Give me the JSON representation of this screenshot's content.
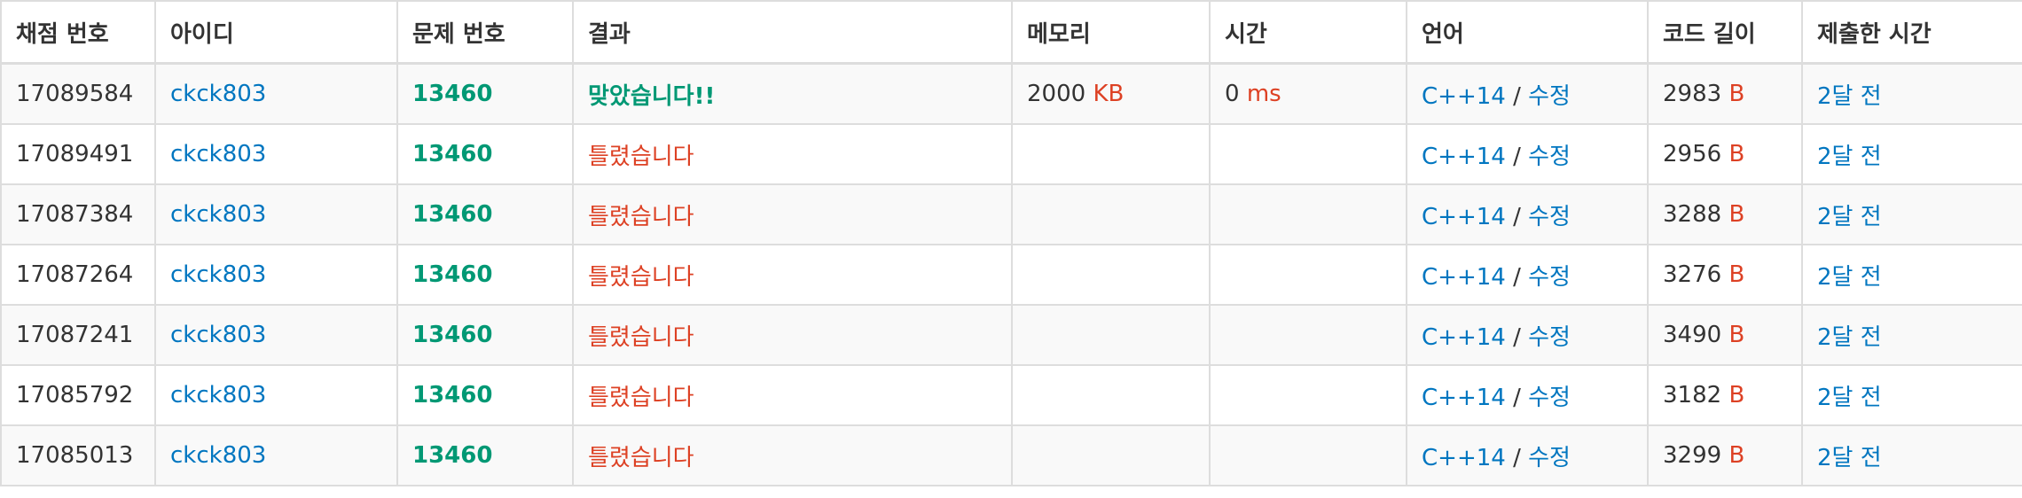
{
  "columns": [
    "채점 번호",
    "아이디",
    "문제 번호",
    "결과",
    "메모리",
    "시간",
    "언어",
    "코드 길이",
    "제출한 시간"
  ],
  "units": {
    "memory": "KB",
    "time": "ms",
    "code_length": "B"
  },
  "colors": {
    "accepted": "#009874",
    "wrong": "#dd4124",
    "link": "#0076c0",
    "unit": "#dd4124"
  },
  "rows": [
    {
      "id": "17089584",
      "user": "ckck803",
      "problem": "13460",
      "result": "맞았습니다!!",
      "result_kind": "accepted",
      "memory": "2000",
      "memory_unit": "KB",
      "time": "0",
      "time_unit": "ms",
      "language": "C++14",
      "sep": "/",
      "edit": "수정",
      "code_length": "2983",
      "code_unit": "B",
      "submitted": "2달 전"
    },
    {
      "id": "17089491",
      "user": "ckck803",
      "problem": "13460",
      "result": "틀렸습니다",
      "result_kind": "wrong",
      "memory": "",
      "memory_unit": "",
      "time": "",
      "time_unit": "",
      "language": "C++14",
      "sep": "/",
      "edit": "수정",
      "code_length": "2956",
      "code_unit": "B",
      "submitted": "2달 전"
    },
    {
      "id": "17087384",
      "user": "ckck803",
      "problem": "13460",
      "result": "틀렸습니다",
      "result_kind": "wrong",
      "memory": "",
      "memory_unit": "",
      "time": "",
      "time_unit": "",
      "language": "C++14",
      "sep": "/",
      "edit": "수정",
      "code_length": "3288",
      "code_unit": "B",
      "submitted": "2달 전"
    },
    {
      "id": "17087264",
      "user": "ckck803",
      "problem": "13460",
      "result": "틀렸습니다",
      "result_kind": "wrong",
      "memory": "",
      "memory_unit": "",
      "time": "",
      "time_unit": "",
      "language": "C++14",
      "sep": "/",
      "edit": "수정",
      "code_length": "3276",
      "code_unit": "B",
      "submitted": "2달 전"
    },
    {
      "id": "17087241",
      "user": "ckck803",
      "problem": "13460",
      "result": "틀렸습니다",
      "result_kind": "wrong",
      "memory": "",
      "memory_unit": "",
      "time": "",
      "time_unit": "",
      "language": "C++14",
      "sep": "/",
      "edit": "수정",
      "code_length": "3490",
      "code_unit": "B",
      "submitted": "2달 전"
    },
    {
      "id": "17085792",
      "user": "ckck803",
      "problem": "13460",
      "result": "틀렸습니다",
      "result_kind": "wrong",
      "memory": "",
      "memory_unit": "",
      "time": "",
      "time_unit": "",
      "language": "C++14",
      "sep": "/",
      "edit": "수정",
      "code_length": "3182",
      "code_unit": "B",
      "submitted": "2달 전"
    },
    {
      "id": "17085013",
      "user": "ckck803",
      "problem": "13460",
      "result": "틀렸습니다",
      "result_kind": "wrong",
      "memory": "",
      "memory_unit": "",
      "time": "",
      "time_unit": "",
      "language": "C++14",
      "sep": "/",
      "edit": "수정",
      "code_length": "3299",
      "code_unit": "B",
      "submitted": "2달 전"
    }
  ]
}
